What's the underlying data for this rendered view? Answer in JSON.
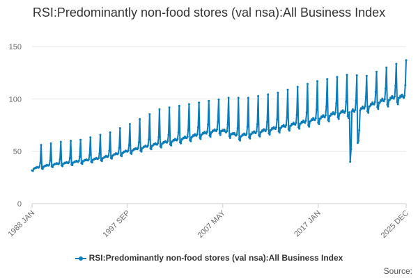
{
  "chart_data": {
    "type": "line",
    "title": "RSI:Predominantly non-food stores (val nsa):All Business Index",
    "xlabel": "",
    "ylabel": "",
    "ylim": [
      0,
      150
    ],
    "yticks": [
      0,
      50,
      100,
      150
    ],
    "x_tick_labels": [
      "1988 JAN",
      "1997 SEP",
      "2007 MAY",
      "2017 JAN",
      "2025 DEC"
    ],
    "grid": true,
    "legend_position": "bottom",
    "series": [
      {
        "name": "RSI:Predominantly non-food stores (val nsa):All Business Index",
        "color": "#0A7CBA",
        "frequency": "monthly",
        "start": "1988 JAN",
        "end": "2025 DEC",
        "pattern": "seasonal; annual December peak",
        "anchors": [
          {
            "year": 1988,
            "base": 33,
            "december": 56
          },
          {
            "year": 1990,
            "base": 37,
            "december": 59
          },
          {
            "year": 1992,
            "base": 39,
            "december": 61
          },
          {
            "year": 1995,
            "base": 43,
            "december": 68
          },
          {
            "year": 1997,
            "base": 48,
            "december": 76
          },
          {
            "year": 2000,
            "base": 55,
            "december": 90
          },
          {
            "year": 2003,
            "base": 61,
            "december": 95
          },
          {
            "year": 2007,
            "base": 70,
            "december": 101
          },
          {
            "year": 2009,
            "base": 64,
            "december": 101
          },
          {
            "year": 2012,
            "base": 70,
            "december": 106
          },
          {
            "year": 2016,
            "base": 78,
            "december": 117
          },
          {
            "year": 2019,
            "base": 86,
            "december": 123
          },
          {
            "year": 2021,
            "base": 88,
            "december": 122
          },
          {
            "year": 2023,
            "base": 96,
            "december": 130
          },
          {
            "year": 2025,
            "base": 101,
            "december": 137
          }
        ],
        "shocks": [
          {
            "date": "2020 APR",
            "value": 40
          },
          {
            "date": "2020 MAY",
            "value": 52
          },
          {
            "date": "2021 JAN",
            "value": 58
          },
          {
            "date": "2021 FEB",
            "value": 60
          },
          {
            "date": "2021 MAR",
            "value": 70
          }
        ]
      }
    ]
  },
  "legend": {
    "label": "RSI:Predominantly non-food stores (val nsa):All Business Index"
  },
  "source_label": "Source:"
}
